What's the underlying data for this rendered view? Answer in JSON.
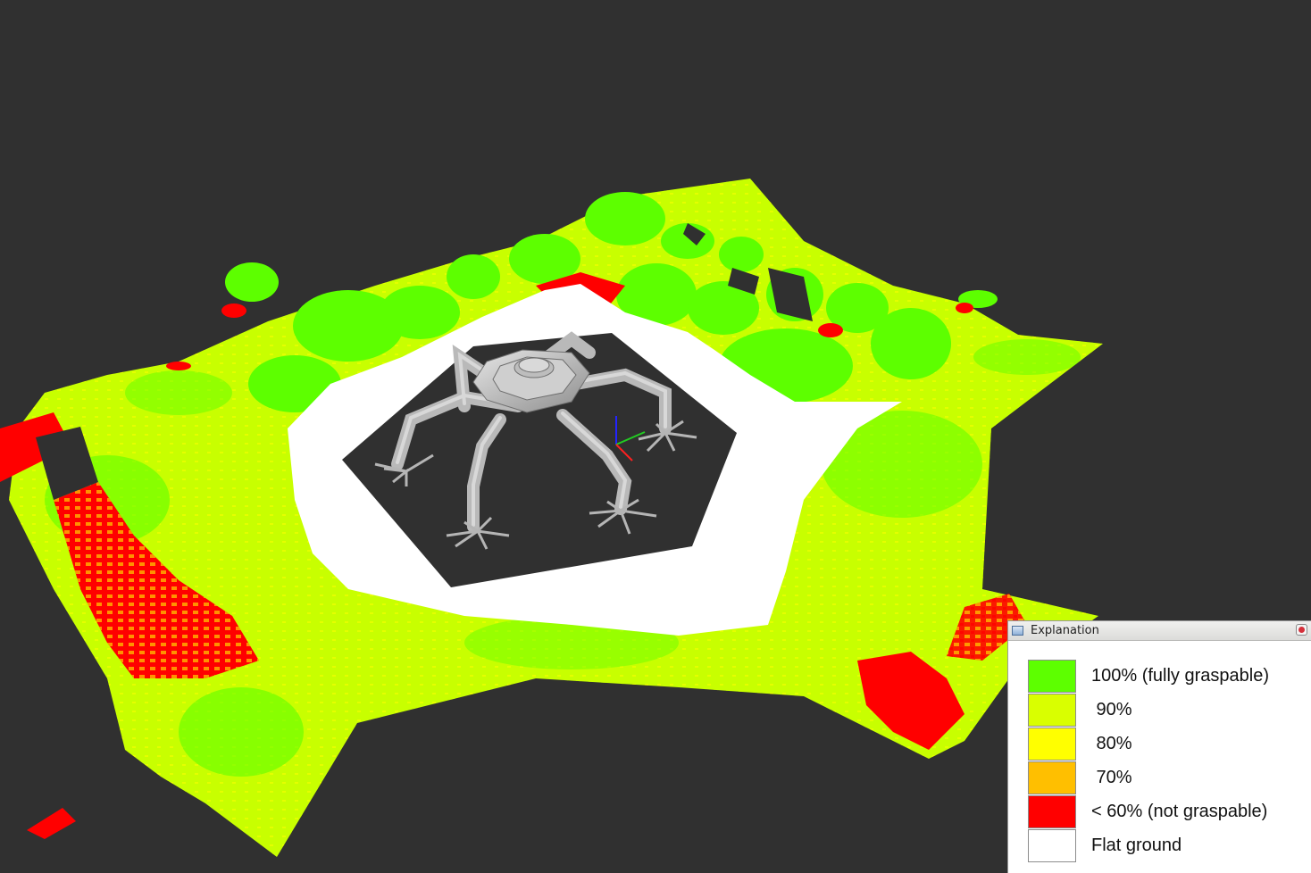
{
  "legend": {
    "title": "Explanation",
    "items": [
      {
        "label": "100% (fully graspable)",
        "color": "#5dff00"
      },
      {
        "label": " 90%",
        "color": "#d9ff00"
      },
      {
        "label": " 80%",
        "color": "#ffff00"
      },
      {
        "label": " 70%",
        "color": "#ffbf00"
      },
      {
        "label": "< 60% (not graspable)",
        "color": "#ff0000"
      },
      {
        "label": "Flat ground",
        "color": "#ffffff"
      }
    ]
  },
  "scene": {
    "background_color": "#303030",
    "robot": "hexapod-robot",
    "axes": [
      "x-axis",
      "y-axis",
      "z-axis"
    ]
  }
}
